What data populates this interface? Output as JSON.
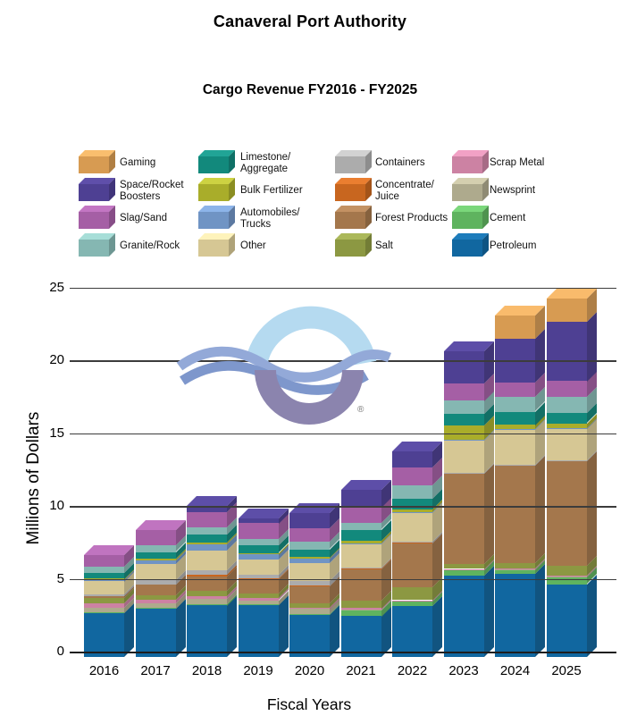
{
  "titles": {
    "main": "Canaveral Port Authority",
    "subtitle": "Cargo Revenue FY2016 - FY2025"
  },
  "y_axis": {
    "label": "Millions of Dollars",
    "ticks": [
      0,
      5,
      10,
      15,
      20,
      25
    ]
  },
  "x_axis": {
    "label": "Fiscal Years"
  },
  "logo": {
    "registered_mark": "®"
  },
  "legend": {
    "columns": [
      [
        {
          "label": "Gaming",
          "color": "#D79B52"
        },
        {
          "label": "Space/Rocket\nBoosters",
          "color": "#4E4093"
        },
        {
          "label": "Slag/Sand",
          "color": "#A55FA5"
        },
        {
          "label": "Granite/Rock",
          "color": "#85B7B2"
        }
      ],
      [
        {
          "label": "Limestone/\nAggregate",
          "color": "#12897C"
        },
        {
          "label": "Bulk Fertilizer",
          "color": "#A9AD2A"
        },
        {
          "label": "Automobiles/\nTrucks",
          "color": "#7094C4"
        },
        {
          "label": "Other",
          "color": "#D6C794"
        }
      ],
      [
        {
          "label": "Containers",
          "color": "#ACACAC"
        },
        {
          "label": "Concentrate/\nJuice",
          "color": "#C8661F"
        },
        {
          "label": "Forest Products",
          "color": "#A4774C"
        },
        {
          "label": "Salt",
          "color": "#8C9842"
        }
      ],
      [
        {
          "label": "Scrap Metal",
          "color": "#CC82A3"
        },
        {
          "label": "Newsprint",
          "color": "#AEAA8D"
        },
        {
          "label": "Cement",
          "color": "#5FB35F"
        },
        {
          "label": "Petroleum",
          "color": "#1167A0"
        }
      ]
    ]
  },
  "chart_data": {
    "type": "bar",
    "stacked": true,
    "title": "Cargo Revenue FY2016 - FY2025",
    "xlabel": "Fiscal Years",
    "ylabel": "Millions of Dollars",
    "ylim": [
      0,
      25
    ],
    "y_tick_step": 5,
    "grid": true,
    "legend_position": "top",
    "units": "millions of dollars",
    "categories": [
      "2016",
      "2017",
      "2018",
      "2019",
      "2020",
      "2021",
      "2022",
      "2023",
      "2024",
      "2025"
    ],
    "series": [
      {
        "name": "Petroleum",
        "color": "#1167A0",
        "values": [
          3.0,
          3.3,
          3.55,
          3.55,
          2.9,
          2.8,
          3.5,
          5.6,
          5.7,
          5.0
        ]
      },
      {
        "name": "Cement",
        "color": "#5FB35F",
        "values": [
          0.05,
          0.05,
          0.1,
          0.05,
          0.05,
          0.4,
          0.3,
          0.35,
          0.3,
          0.5
        ]
      },
      {
        "name": "Newsprint",
        "color": "#AEAA8D",
        "values": [
          0.35,
          0.35,
          0.35,
          0.3,
          0.35,
          0.05,
          0.05,
          0.05,
          0.05,
          0.05
        ]
      },
      {
        "name": "Scrap Metal",
        "color": "#CC82A3",
        "values": [
          0.3,
          0.25,
          0.2,
          0.15,
          0.1,
          0.1,
          0.05,
          0.05,
          0.05,
          0.05
        ]
      },
      {
        "name": "Salt",
        "color": "#8C9842",
        "values": [
          0.35,
          0.3,
          0.35,
          0.3,
          0.3,
          0.55,
          0.9,
          0.35,
          0.35,
          0.65
        ]
      },
      {
        "name": "Forest Products",
        "color": "#A4774C",
        "values": [
          0.1,
          0.75,
          1.0,
          1.0,
          1.15,
          2.15,
          3.0,
          6.2,
          6.7,
          7.2
        ]
      },
      {
        "name": "Concentrate/Juice",
        "color": "#C8661F",
        "values": [
          0,
          0,
          0.1,
          0.05,
          0.05,
          0.05,
          0.05,
          0,
          0,
          0
        ]
      },
      {
        "name": "Containers",
        "color": "#ACACAC",
        "values": [
          0.15,
          0.3,
          0.3,
          0.25,
          0.35,
          0.05,
          0.1,
          0.05,
          0.05,
          0.05
        ]
      },
      {
        "name": "Other",
        "color": "#D6C794",
        "values": [
          0.9,
          1.1,
          1.35,
          1.05,
          1.2,
          1.6,
          1.95,
          2.2,
          2.4,
          2.2
        ]
      },
      {
        "name": "Automobiles/Trucks",
        "color": "#7094C4",
        "values": [
          0.1,
          0.25,
          0.45,
          0.35,
          0.3,
          0.05,
          0.05,
          0.05,
          0.05,
          0.05
        ]
      },
      {
        "name": "Bulk Fertilizer",
        "color": "#A9AD2A",
        "values": [
          0.1,
          0.1,
          0.1,
          0.1,
          0.1,
          0.2,
          0.2,
          1.0,
          0.3,
          0.3
        ]
      },
      {
        "name": "Limestone/Aggregate",
        "color": "#12897C",
        "values": [
          0.4,
          0.45,
          0.55,
          0.5,
          0.55,
          0.75,
          0.75,
          0.8,
          0.9,
          0.7
        ]
      },
      {
        "name": "Granite/Rock",
        "color": "#85B7B2",
        "values": [
          0.4,
          0.45,
          0.5,
          0.45,
          0.5,
          0.45,
          0.9,
          0.9,
          1.0,
          1.1
        ]
      },
      {
        "name": "Slag/Sand",
        "color": "#A55FA5",
        "values": [
          0.8,
          1.05,
          1.05,
          1.1,
          0.95,
          1.1,
          1.2,
          1.2,
          1.0,
          1.1
        ]
      },
      {
        "name": "Space/Rocket Boosters",
        "color": "#4E4093",
        "values": [
          0,
          0,
          0.45,
          0.35,
          1.05,
          1.2,
          1.1,
          2.2,
          3.0,
          4.1
        ]
      },
      {
        "name": "Gaming",
        "color": "#D79B52",
        "values": [
          0,
          0,
          0,
          0,
          0,
          0,
          0,
          0,
          1.6,
          1.6
        ]
      }
    ],
    "totals": [
      7.0,
      8.7,
      10.4,
      9.55,
      9.9,
      11.5,
      14.1,
      21.0,
      23.45,
      24.65
    ]
  }
}
